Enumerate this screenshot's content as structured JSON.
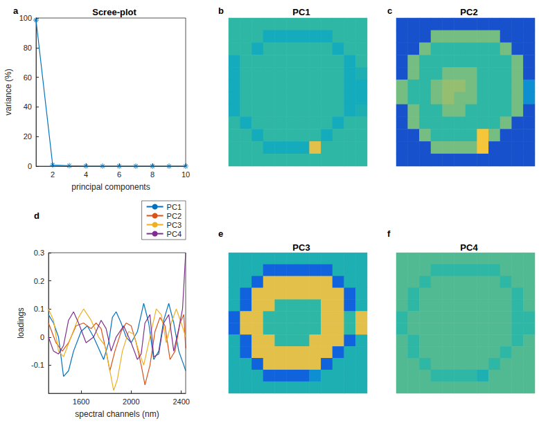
{
  "chart_data": [
    {
      "type": "line",
      "panel": "a",
      "title": "Scree-plot",
      "x_label": "principal components",
      "y_label": "variance (%)",
      "x": [
        1,
        2,
        3,
        4,
        5,
        6,
        7,
        8,
        9,
        10
      ],
      "values": [
        98.6,
        0.8,
        0.3,
        0.1,
        0.1,
        0.05,
        0.05,
        0.03,
        0.02,
        0.02
      ],
      "color": "#0072bd",
      "marker": "star",
      "xlim": [
        1,
        10
      ],
      "xticks": [
        2,
        4,
        6,
        8,
        10
      ],
      "ylim": [
        0,
        100
      ],
      "yticks": [
        0,
        20,
        40,
        60,
        80,
        100
      ]
    },
    {
      "type": "heatmap",
      "panel": "b",
      "title": "PC1",
      "tick_labels": false,
      "clim": [
        0,
        1
      ],
      "cells": [
        [
          0.5,
          0.5,
          0.5,
          0.5,
          0.5,
          0.5,
          0.5,
          0.5,
          0.5,
          0.5,
          0.5,
          0.5
        ],
        [
          0.5,
          0.5,
          0.5,
          0.42,
          0.42,
          0.42,
          0.42,
          0.42,
          0.42,
          0.5,
          0.5,
          0.5
        ],
        [
          0.5,
          0.5,
          0.42,
          0.5,
          0.5,
          0.5,
          0.5,
          0.5,
          0.5,
          0.42,
          0.5,
          0.5
        ],
        [
          0.42,
          0.5,
          0.5,
          0.5,
          0.5,
          0.5,
          0.5,
          0.5,
          0.5,
          0.5,
          0.42,
          0.5
        ],
        [
          0.42,
          0.5,
          0.5,
          0.5,
          0.5,
          0.5,
          0.5,
          0.5,
          0.5,
          0.5,
          0.42,
          0.45
        ],
        [
          0.42,
          0.5,
          0.5,
          0.5,
          0.5,
          0.5,
          0.5,
          0.5,
          0.5,
          0.5,
          0.42,
          0.42
        ],
        [
          0.42,
          0.5,
          0.5,
          0.5,
          0.5,
          0.5,
          0.5,
          0.5,
          0.5,
          0.5,
          0.42,
          0.42
        ],
        [
          0.42,
          0.5,
          0.5,
          0.5,
          0.5,
          0.5,
          0.5,
          0.5,
          0.5,
          0.5,
          0.42,
          0.45
        ],
        [
          0.5,
          0.42,
          0.5,
          0.5,
          0.5,
          0.5,
          0.5,
          0.5,
          0.5,
          0.42,
          0.5,
          0.5
        ],
        [
          0.5,
          0.5,
          0.42,
          0.5,
          0.5,
          0.5,
          0.5,
          0.5,
          0.42,
          0.5,
          0.5,
          0.5
        ],
        [
          0.5,
          0.5,
          0.5,
          0.42,
          0.42,
          0.42,
          0.42,
          0.8,
          0.5,
          0.5,
          0.5,
          0.5
        ],
        [
          0.5,
          0.5,
          0.5,
          0.5,
          0.5,
          0.5,
          0.5,
          0.5,
          0.5,
          0.5,
          0.5,
          0.5
        ]
      ]
    },
    {
      "type": "heatmap",
      "panel": "c",
      "title": "PC2",
      "tick_labels": false,
      "clim": [
        0,
        1
      ],
      "cells": [
        [
          0.1,
          0.1,
          0.1,
          0.1,
          0.1,
          0.1,
          0.1,
          0.1,
          0.1,
          0.1,
          0.1,
          0.1
        ],
        [
          0.1,
          0.1,
          0.1,
          0.6,
          0.6,
          0.6,
          0.6,
          0.6,
          0.6,
          0.1,
          0.1,
          0.1
        ],
        [
          0.1,
          0.1,
          0.6,
          0.5,
          0.5,
          0.5,
          0.5,
          0.5,
          0.5,
          0.6,
          0.1,
          0.1
        ],
        [
          0.1,
          0.6,
          0.5,
          0.5,
          0.5,
          0.5,
          0.5,
          0.5,
          0.5,
          0.5,
          0.6,
          0.1
        ],
        [
          0.1,
          0.6,
          0.5,
          0.5,
          0.6,
          0.6,
          0.6,
          0.5,
          0.5,
          0.5,
          0.6,
          0.1
        ],
        [
          0.6,
          0.5,
          0.5,
          0.6,
          0.65,
          0.65,
          0.6,
          0.5,
          0.5,
          0.5,
          0.6,
          0.3
        ],
        [
          0.6,
          0.5,
          0.5,
          0.6,
          0.65,
          0.6,
          0.6,
          0.5,
          0.5,
          0.5,
          0.6,
          0.3
        ],
        [
          0.1,
          0.6,
          0.5,
          0.5,
          0.6,
          0.6,
          0.5,
          0.5,
          0.5,
          0.5,
          0.6,
          0.1
        ],
        [
          0.1,
          0.6,
          0.5,
          0.5,
          0.5,
          0.5,
          0.5,
          0.5,
          0.5,
          0.6,
          0.1,
          0.1
        ],
        [
          0.1,
          0.1,
          0.6,
          0.5,
          0.5,
          0.5,
          0.5,
          0.85,
          0.6,
          0.1,
          0.1,
          0.1
        ],
        [
          0.1,
          0.1,
          0.1,
          0.6,
          0.6,
          0.6,
          0.6,
          0.85,
          0.1,
          0.1,
          0.1,
          0.1
        ],
        [
          0.1,
          0.1,
          0.1,
          0.1,
          0.1,
          0.1,
          0.1,
          0.1,
          0.1,
          0.1,
          0.1,
          0.1
        ]
      ]
    },
    {
      "type": "line",
      "panel": "d",
      "x_label": "spectral channels (nm)",
      "y_label": "loadings",
      "xlim": [
        1340,
        2435
      ],
      "xticks": [
        1600,
        2000,
        2400
      ],
      "ylim": [
        -0.2,
        0.3
      ],
      "yticks": [
        -0.1,
        0,
        0.1,
        0.2,
        0.3
      ],
      "legend": "top-right",
      "series": [
        {
          "name": "PC1",
          "color": "#0072bd",
          "x": [
            1340,
            1380,
            1420,
            1460,
            1500,
            1540,
            1600,
            1650,
            1700,
            1750,
            1780,
            1820,
            1850,
            1880,
            1920,
            1960,
            2000,
            2050,
            2100,
            2140,
            2180,
            2220,
            2260,
            2300,
            2340,
            2380,
            2420,
            2435
          ],
          "values": [
            0.08,
            0.05,
            0,
            -0.14,
            -0.12,
            -0.05,
            0.02,
            0.04,
            0,
            -0.05,
            -0.08,
            -0.02,
            0.07,
            0.09,
            0.05,
            0,
            -0.02,
            0.02,
            0.12,
            0.05,
            -0.08,
            -0.05,
            0.06,
            0.12,
            0.05,
            -0.05,
            -0.1,
            -0.12
          ]
        },
        {
          "name": "PC2",
          "color": "#d95319",
          "x": [
            1340,
            1400,
            1450,
            1500,
            1560,
            1620,
            1680,
            1720,
            1760,
            1800,
            1830,
            1870,
            1920,
            1960,
            2000,
            2040,
            2080,
            2110,
            2150,
            2190,
            2230,
            2270,
            2310,
            2350,
            2390,
            2420,
            2435
          ],
          "values": [
            0.05,
            -0.02,
            -0.05,
            -0.02,
            0.04,
            0.05,
            0.03,
            0.05,
            0.03,
            -0.05,
            -0.12,
            -0.05,
            0.02,
            0.05,
            0.04,
            -0.02,
            -0.1,
            -0.17,
            -0.1,
            0.02,
            0.07,
            0.04,
            -0.08,
            -0.05,
            0.05,
            0.08,
            -0.04
          ]
        },
        {
          "name": "PC3",
          "color": "#edb120",
          "x": [
            1340,
            1380,
            1420,
            1460,
            1520,
            1580,
            1620,
            1680,
            1740,
            1790,
            1830,
            1860,
            1890,
            1930,
            1980,
            2020,
            2060,
            2100,
            2150,
            2200,
            2240,
            2280,
            2320,
            2360,
            2400,
            2435
          ],
          "values": [
            0.1,
            0.06,
            -0.05,
            -0.07,
            0,
            0.07,
            0.1,
            0.06,
            0,
            -0.03,
            -0.12,
            -0.19,
            -0.15,
            -0.05,
            0.02,
            0.01,
            -0.05,
            -0.1,
            0,
            0.1,
            0.08,
            -0.02,
            0.05,
            0.1,
            0.05,
            0
          ]
        },
        {
          "name": "PC4",
          "color": "#7e2f8e",
          "x": [
            1340,
            1380,
            1420,
            1460,
            1500,
            1540,
            1580,
            1640,
            1700,
            1760,
            1800,
            1840,
            1880,
            1940,
            2000,
            2050,
            2080,
            2110,
            2150,
            2180,
            2220,
            2260,
            2300,
            2340,
            2380,
            2410,
            2435
          ],
          "values": [
            0,
            -0.05,
            -0.06,
            -0.03,
            0.06,
            0.09,
            0.05,
            -0.02,
            0,
            0.06,
            0.03,
            -0.05,
            0,
            0.04,
            -0.02,
            -0.08,
            -0.06,
            0.05,
            0.08,
            -0.07,
            -0.06,
            0.05,
            0.08,
            -0.05,
            0.03,
            0.1,
            0.3
          ]
        }
      ]
    },
    {
      "type": "heatmap",
      "panel": "e",
      "title": "PC3",
      "tick_labels": false,
      "clim": [
        0,
        1
      ],
      "cells": [
        [
          0.45,
          0.45,
          0.45,
          0.45,
          0.45,
          0.45,
          0.45,
          0.45,
          0.45,
          0.45,
          0.45,
          0.45
        ],
        [
          0.45,
          0.45,
          0.45,
          0.15,
          0.15,
          0.15,
          0.15,
          0.15,
          0.15,
          0.45,
          0.45,
          0.45
        ],
        [
          0.45,
          0.45,
          0.15,
          0.8,
          0.8,
          0.8,
          0.8,
          0.8,
          0.8,
          0.15,
          0.45,
          0.45
        ],
        [
          0.45,
          0.15,
          0.8,
          0.8,
          0.8,
          0.8,
          0.8,
          0.8,
          0.8,
          0.8,
          0.15,
          0.45
        ],
        [
          0.45,
          0.15,
          0.8,
          0.8,
          0.5,
          0.5,
          0.5,
          0.5,
          0.8,
          0.8,
          0.15,
          0.45
        ],
        [
          0.15,
          0.8,
          0.8,
          0.5,
          0.5,
          0.5,
          0.5,
          0.5,
          0.8,
          0.8,
          0.5,
          0.8
        ],
        [
          0.15,
          0.8,
          0.8,
          0.5,
          0.5,
          0.5,
          0.5,
          0.5,
          0.8,
          0.8,
          0.5,
          0.8
        ],
        [
          0.45,
          0.15,
          0.8,
          0.8,
          0.5,
          0.5,
          0.5,
          0.8,
          0.8,
          0.8,
          0.15,
          0.45
        ],
        [
          0.45,
          0.15,
          0.8,
          0.8,
          0.8,
          0.8,
          0.8,
          0.8,
          0.8,
          0.15,
          0.45,
          0.45
        ],
        [
          0.45,
          0.45,
          0.15,
          0.8,
          0.8,
          0.8,
          0.8,
          0.8,
          0.15,
          0.45,
          0.45,
          0.45
        ],
        [
          0.45,
          0.45,
          0.45,
          0.15,
          0.15,
          0.15,
          0.15,
          0.3,
          0.45,
          0.45,
          0.45,
          0.45
        ],
        [
          0.45,
          0.45,
          0.45,
          0.45,
          0.45,
          0.45,
          0.45,
          0.45,
          0.45,
          0.45,
          0.45,
          0.45
        ]
      ]
    },
    {
      "type": "heatmap",
      "panel": "f",
      "title": "PC4",
      "tick_labels": false,
      "clim": [
        0,
        1
      ],
      "cells": [
        [
          0.55,
          0.55,
          0.55,
          0.55,
          0.55,
          0.55,
          0.55,
          0.55,
          0.55,
          0.55,
          0.55,
          0.55
        ],
        [
          0.55,
          0.55,
          0.55,
          0.5,
          0.5,
          0.5,
          0.5,
          0.5,
          0.5,
          0.55,
          0.55,
          0.55
        ],
        [
          0.55,
          0.55,
          0.5,
          0.55,
          0.55,
          0.55,
          0.55,
          0.55,
          0.55,
          0.5,
          0.55,
          0.55
        ],
        [
          0.55,
          0.5,
          0.55,
          0.55,
          0.55,
          0.55,
          0.55,
          0.55,
          0.55,
          0.55,
          0.5,
          0.55
        ],
        [
          0.55,
          0.5,
          0.55,
          0.55,
          0.55,
          0.55,
          0.55,
          0.55,
          0.55,
          0.55,
          0.5,
          0.55
        ],
        [
          0.5,
          0.55,
          0.55,
          0.55,
          0.55,
          0.55,
          0.55,
          0.55,
          0.55,
          0.55,
          0.5,
          0.5
        ],
        [
          0.5,
          0.55,
          0.55,
          0.55,
          0.55,
          0.55,
          0.55,
          0.55,
          0.55,
          0.55,
          0.5,
          0.5
        ],
        [
          0.55,
          0.5,
          0.55,
          0.55,
          0.55,
          0.55,
          0.55,
          0.55,
          0.55,
          0.55,
          0.5,
          0.55
        ],
        [
          0.55,
          0.5,
          0.55,
          0.55,
          0.55,
          0.55,
          0.55,
          0.55,
          0.55,
          0.5,
          0.55,
          0.55
        ],
        [
          0.55,
          0.55,
          0.5,
          0.55,
          0.55,
          0.55,
          0.55,
          0.55,
          0.5,
          0.55,
          0.55,
          0.55
        ],
        [
          0.55,
          0.55,
          0.55,
          0.5,
          0.5,
          0.5,
          0.5,
          0.45,
          0.55,
          0.55,
          0.55,
          0.55
        ],
        [
          0.55,
          0.55,
          0.55,
          0.55,
          0.55,
          0.55,
          0.55,
          0.55,
          0.55,
          0.55,
          0.55,
          0.55
        ]
      ]
    }
  ]
}
